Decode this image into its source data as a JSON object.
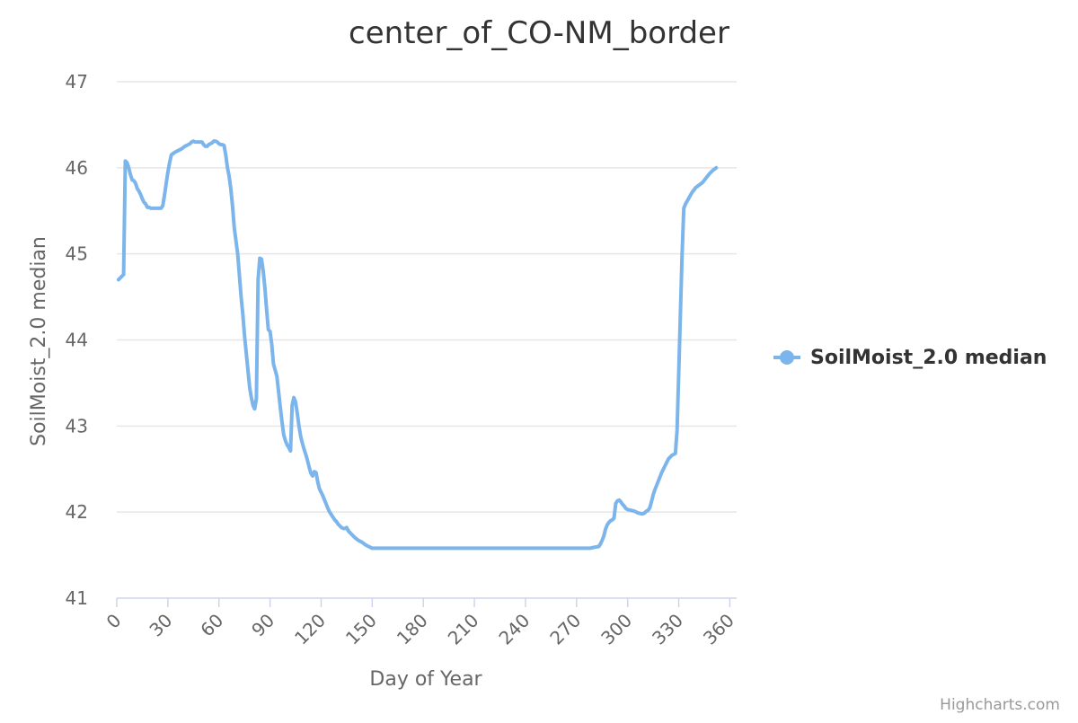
{
  "chart_data": {
    "type": "line",
    "title": "center_of_CO-NM_border",
    "xlabel": "Day of Year",
    "ylabel": "SoilMoist_2.0 median",
    "xlim": [
      0,
      366
    ],
    "ylim": [
      41,
      47
    ],
    "xticks": [
      0,
      30,
      60,
      90,
      120,
      150,
      180,
      210,
      240,
      270,
      300,
      330,
      360
    ],
    "yticks": [
      41,
      42,
      43,
      44,
      45,
      46,
      47
    ],
    "grid": true,
    "legend_position": "right",
    "series": [
      {
        "name": "SoilMoist_2.0 median",
        "color": "#7cb5ec",
        "points": [
          [
            1,
            44.7
          ],
          [
            2,
            44.72
          ],
          [
            3,
            44.74
          ],
          [
            4,
            44.76
          ],
          [
            5,
            46.08
          ],
          [
            6,
            46.06
          ],
          [
            7,
            46.0
          ],
          [
            8,
            45.92
          ],
          [
            9,
            45.86
          ],
          [
            10,
            45.85
          ],
          [
            11,
            45.82
          ],
          [
            12,
            45.76
          ],
          [
            13,
            45.73
          ],
          [
            14,
            45.69
          ],
          [
            15,
            45.64
          ],
          [
            16,
            45.6
          ],
          [
            17,
            45.58
          ],
          [
            18,
            45.54
          ],
          [
            19,
            45.54
          ],
          [
            20,
            45.53
          ],
          [
            22,
            45.53
          ],
          [
            24,
            45.53
          ],
          [
            26,
            45.53
          ],
          [
            27,
            45.56
          ],
          [
            28,
            45.68
          ],
          [
            29,
            45.82
          ],
          [
            30,
            45.95
          ],
          [
            31,
            46.06
          ],
          [
            32,
            46.15
          ],
          [
            34,
            46.18
          ],
          [
            36,
            46.2
          ],
          [
            38,
            46.22
          ],
          [
            40,
            46.25
          ],
          [
            42,
            46.27
          ],
          [
            43,
            46.28
          ],
          [
            44,
            46.3
          ],
          [
            45,
            46.31
          ],
          [
            46,
            46.3
          ],
          [
            48,
            46.3
          ],
          [
            50,
            46.3
          ],
          [
            51,
            46.27
          ],
          [
            52,
            46.25
          ],
          [
            53,
            46.25
          ],
          [
            54,
            46.27
          ],
          [
            56,
            46.29
          ],
          [
            57,
            46.31
          ],
          [
            58,
            46.31
          ],
          [
            59,
            46.3
          ],
          [
            60,
            46.28
          ],
          [
            61,
            46.27
          ],
          [
            62,
            46.27
          ],
          [
            63,
            46.26
          ],
          [
            64,
            46.15
          ],
          [
            65,
            46.0
          ],
          [
            66,
            45.9
          ],
          [
            67,
            45.75
          ],
          [
            68,
            45.55
          ],
          [
            69,
            45.3
          ],
          [
            70,
            45.15
          ],
          [
            71,
            45.0
          ],
          [
            72,
            44.75
          ],
          [
            73,
            44.5
          ],
          [
            74,
            44.3
          ],
          [
            75,
            44.05
          ],
          [
            76,
            43.85
          ],
          [
            77,
            43.65
          ],
          [
            78,
            43.45
          ],
          [
            79,
            43.33
          ],
          [
            80,
            43.24
          ],
          [
            81,
            43.2
          ],
          [
            82,
            43.32
          ],
          [
            83,
            44.7
          ],
          [
            84,
            44.95
          ],
          [
            85,
            44.94
          ],
          [
            86,
            44.8
          ],
          [
            87,
            44.6
          ],
          [
            88,
            44.35
          ],
          [
            89,
            44.12
          ],
          [
            90,
            44.1
          ],
          [
            91,
            43.95
          ],
          [
            92,
            43.72
          ],
          [
            93,
            43.65
          ],
          [
            94,
            43.58
          ],
          [
            95,
            43.4
          ],
          [
            96,
            43.22
          ],
          [
            97,
            43.05
          ],
          [
            98,
            42.9
          ],
          [
            99,
            42.83
          ],
          [
            100,
            42.78
          ],
          [
            101,
            42.75
          ],
          [
            102,
            42.71
          ],
          [
            103,
            43.24
          ],
          [
            104,
            43.33
          ],
          [
            105,
            43.28
          ],
          [
            106,
            43.15
          ],
          [
            107,
            43.0
          ],
          [
            108,
            42.88
          ],
          [
            109,
            42.8
          ],
          [
            110,
            42.73
          ],
          [
            111,
            42.67
          ],
          [
            112,
            42.6
          ],
          [
            113,
            42.52
          ],
          [
            114,
            42.45
          ],
          [
            115,
            42.42
          ],
          [
            116,
            42.47
          ],
          [
            117,
            42.46
          ],
          [
            118,
            42.35
          ],
          [
            119,
            42.27
          ],
          [
            120,
            42.23
          ],
          [
            121,
            42.19
          ],
          [
            122,
            42.14
          ],
          [
            123,
            42.09
          ],
          [
            124,
            42.04
          ],
          [
            125,
            42.0
          ],
          [
            126,
            41.97
          ],
          [
            127,
            41.94
          ],
          [
            128,
            41.91
          ],
          [
            129,
            41.89
          ],
          [
            130,
            41.86
          ],
          [
            131,
            41.84
          ],
          [
            132,
            41.82
          ],
          [
            133,
            41.81
          ],
          [
            134,
            41.81
          ],
          [
            135,
            41.82
          ],
          [
            136,
            41.78
          ],
          [
            138,
            41.74
          ],
          [
            140,
            41.7
          ],
          [
            142,
            41.67
          ],
          [
            144,
            41.65
          ],
          [
            146,
            41.62
          ],
          [
            148,
            41.6
          ],
          [
            150,
            41.58
          ],
          [
            160,
            41.58
          ],
          [
            180,
            41.58
          ],
          [
            200,
            41.58
          ],
          [
            220,
            41.58
          ],
          [
            240,
            41.58
          ],
          [
            260,
            41.58
          ],
          [
            270,
            41.58
          ],
          [
            278,
            41.58
          ],
          [
            280,
            41.59
          ],
          [
            283,
            41.6
          ],
          [
            284,
            41.63
          ],
          [
            285,
            41.67
          ],
          [
            286,
            41.72
          ],
          [
            287,
            41.8
          ],
          [
            288,
            41.85
          ],
          [
            289,
            41.88
          ],
          [
            290,
            41.9
          ],
          [
            291,
            41.91
          ],
          [
            292,
            41.93
          ],
          [
            293,
            42.1
          ],
          [
            294,
            42.13
          ],
          [
            295,
            42.14
          ],
          [
            296,
            42.12
          ],
          [
            297,
            42.09
          ],
          [
            298,
            42.07
          ],
          [
            299,
            42.04
          ],
          [
            300,
            42.03
          ],
          [
            302,
            42.02
          ],
          [
            304,
            42.01
          ],
          [
            306,
            41.99
          ],
          [
            308,
            41.98
          ],
          [
            309,
            41.98
          ],
          [
            310,
            41.99
          ],
          [
            311,
            42.01
          ],
          [
            312,
            42.02
          ],
          [
            313,
            42.05
          ],
          [
            314,
            42.12
          ],
          [
            315,
            42.2
          ],
          [
            316,
            42.26
          ],
          [
            318,
            42.36
          ],
          [
            320,
            42.46
          ],
          [
            322,
            42.54
          ],
          [
            324,
            42.62
          ],
          [
            326,
            42.66
          ],
          [
            328,
            42.68
          ],
          [
            329,
            42.95
          ],
          [
            330,
            43.6
          ],
          [
            331,
            44.3
          ],
          [
            332,
            45.0
          ],
          [
            333,
            45.53
          ],
          [
            334,
            45.58
          ],
          [
            336,
            45.65
          ],
          [
            338,
            45.72
          ],
          [
            340,
            45.77
          ],
          [
            342,
            45.8
          ],
          [
            344,
            45.83
          ],
          [
            346,
            45.88
          ],
          [
            348,
            45.93
          ],
          [
            350,
            45.97
          ],
          [
            352,
            46.0
          ]
        ]
      }
    ]
  },
  "credits": "Highcharts.com"
}
